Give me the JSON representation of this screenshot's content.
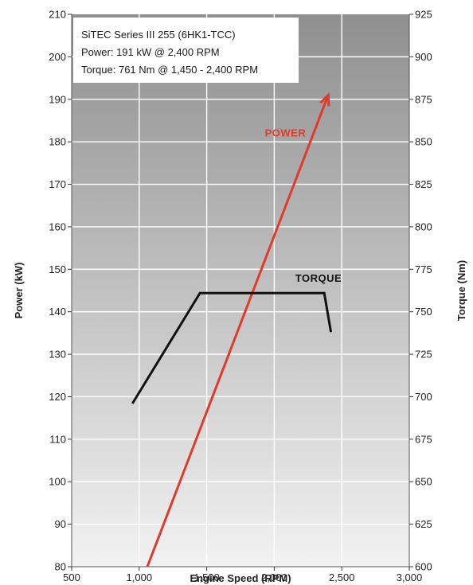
{
  "chart_data": {
    "type": "line",
    "title": "",
    "info_box": [
      "SiTEC Series III 255 (6HK1-TCC)",
      "Power: 191 kW @ 2,400 RPM",
      "Torque: 761 Nm @ 1,450 - 2,400 RPM"
    ],
    "xlabel": "Engine Speed (RPM)",
    "ylabel_left": "Power (kW)",
    "ylabel_right": "Torque (Nm)",
    "xlim": [
      500,
      3000
    ],
    "ylim_left": [
      80,
      210
    ],
    "ylim_right": [
      600,
      925
    ],
    "x_ticks": [
      500,
      1000,
      1500,
      2000,
      2500,
      3000
    ],
    "x_tick_labels": [
      "500",
      "1,000",
      "1,500",
      "2,000",
      "2,500",
      "3,000"
    ],
    "y_left_ticks": [
      80,
      90,
      100,
      110,
      120,
      130,
      140,
      150,
      160,
      170,
      180,
      190,
      200,
      210
    ],
    "y_left_tick_labels": [
      "80",
      "90",
      "100",
      "110",
      "120",
      "130",
      "140",
      "150",
      "160",
      "170",
      "180",
      "190",
      "200",
      "210"
    ],
    "y_right_ticks": [
      600,
      625,
      650,
      675,
      700,
      725,
      750,
      775,
      800,
      825,
      850,
      875,
      900,
      925
    ],
    "y_right_tick_labels": [
      "600",
      "625",
      "650",
      "675",
      "700",
      "725",
      "750",
      "775",
      "800",
      "825",
      "850",
      "875",
      "900",
      "925"
    ],
    "grid": true,
    "series": [
      {
        "name": "POWER",
        "axis": "left",
        "color": "#e03a2a",
        "arrow_end": true,
        "x": [
          1060,
          2400
        ],
        "y": [
          80,
          191
        ]
      },
      {
        "name": "TORQUE",
        "axis": "right",
        "color": "#111111",
        "x": [
          950,
          1450,
          2370,
          2420
        ],
        "y": [
          696,
          761,
          761,
          738
        ]
      }
    ]
  }
}
